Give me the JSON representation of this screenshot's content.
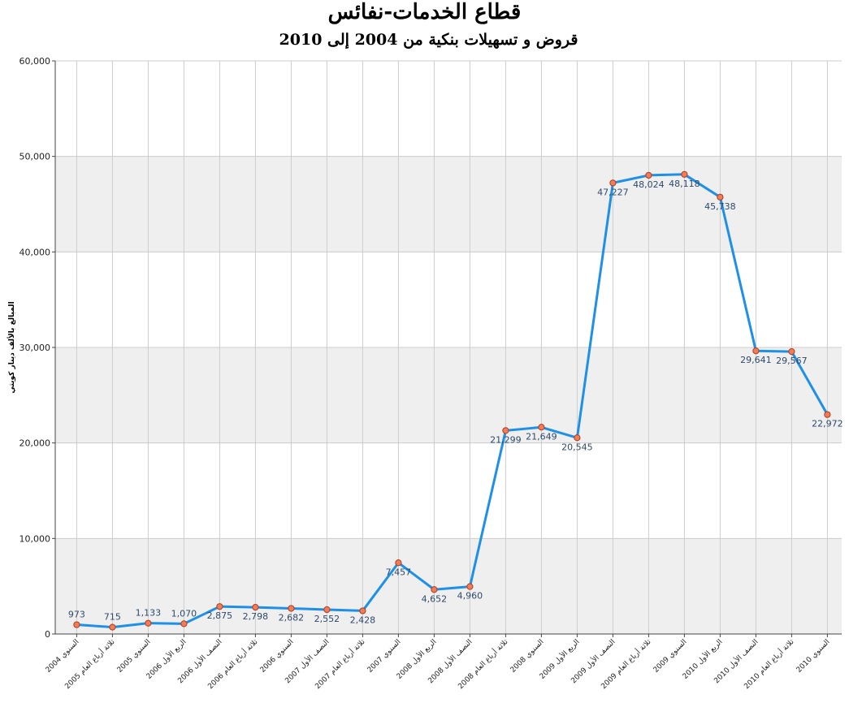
{
  "chart_data": {
    "type": "line",
    "title": "قطاع الخدمات-نفائس",
    "subtitle": "قروض و تسهيلات بنكية من 2004 إلى 2010",
    "ylabel": "المبالغ بالألف دينار كويتي",
    "ylim": [
      0,
      60000
    ],
    "yticks": [
      "0",
      "10,000",
      "20,000",
      "30,000",
      "40,000",
      "50,000",
      "60,000"
    ],
    "grid": true,
    "categories": [
      "السنوي 2004",
      "ثلاثة أرباع العام 2005",
      "السنوي 2005",
      "الربع الأول 2006",
      "النصف الأول 2006",
      "ثلاثة أرباع العام 2006",
      "السنوي 2006",
      "النصف الأول 2007",
      "ثلاثة أرباع العام 2007",
      "السنوي 2007",
      "الربع الأول 2008",
      "النصف الأول 2008",
      "ثلاثة أرباع العام 2008",
      "السنوي 2008",
      "الربع الأول 2009",
      "النصف الأول 2009",
      "ثلاثة أرباع العام 2009",
      "السنوي 2009",
      "الربع الأول 2010",
      "النصف الأول 2010",
      "ثلاثة أرباع العام 2010",
      "السنوي 2010"
    ],
    "values": [
      973,
      715,
      1133,
      1070,
      2875,
      2798,
      2682,
      2552,
      2428,
      7457,
      4652,
      4960,
      21299,
      21649,
      20545,
      47227,
      48024,
      48118,
      45738,
      29641,
      29567,
      22972
    ],
    "value_labels": [
      "973",
      "715",
      "1,133",
      "1,070",
      "2,875",
      "2,798",
      "2,682",
      "2,552",
      "2,428",
      "7,457",
      "4,652",
      "4,960",
      "21,299",
      "21,649",
      "20,545",
      "47,227",
      "48,024",
      "48,118",
      "45,738",
      "29,641",
      "29,567",
      "22,972"
    ],
    "colors": {
      "line": "#1e90e8",
      "marker_fill": "#f07d5a",
      "marker_stroke": "#b33a1a",
      "band": "#efefef",
      "label": "#2e4a6b"
    }
  }
}
